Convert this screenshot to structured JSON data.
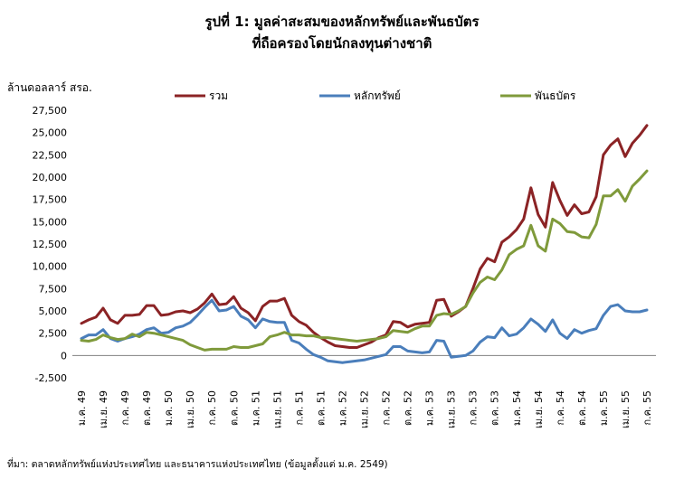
{
  "chart_data": {
    "type": "line",
    "title_line1": "รูปที่ 1: มูลค่าสะสมของหลักทรัพย์และพันธบัตร",
    "title_line2": "ที่ถือครองโดยนักลงทุนต่างชาติ",
    "ylabel": "ล้านดอลลาร์ สรอ.",
    "ylim": [
      -2500,
      27500
    ],
    "yticks": [
      "-2,500",
      "0",
      "2,500",
      "5,000",
      "7,500",
      "10,000",
      "12,500",
      "15,000",
      "17,500",
      "20,000",
      "22,500",
      "25,000",
      "27,500"
    ],
    "xtick_labels": [
      "ม.ค. 49",
      "เม.ย. 49",
      "ก.ค. 49",
      "ต.ค. 49",
      "ม.ค. 50",
      "เม.ย. 50",
      "ก.ค. 50",
      "ต.ค. 50",
      "ม.ค. 51",
      "เม.ย. 51",
      "ก.ค. 51",
      "ต.ค. 51",
      "ม.ค. 52",
      "เม.ย. 52",
      "ก.ค. 52",
      "ต.ค. 52",
      "ม.ค. 53",
      "เม.ย. 53",
      "ก.ค. 53",
      "ต.ค. 53",
      "ม.ค. 54",
      "เม.ย. 54",
      "ก.ค. 54",
      "ต.ค. 54",
      "ม.ค. 55",
      "เม.ย. 55",
      "ก.ค. 55"
    ],
    "legend_placement": "top",
    "grid": false,
    "series": [
      {
        "name": "รวม",
        "color": "#8B2325",
        "values": [
          3600,
          4000,
          4300,
          5300,
          4000,
          3600,
          4500,
          4500,
          4600,
          5600,
          5600,
          4500,
          4600,
          4900,
          5000,
          4800,
          5200,
          5900,
          6900,
          5700,
          5800,
          6600,
          5300,
          4800,
          3900,
          5500,
          6100,
          6100,
          6400,
          4500,
          3800,
          3400,
          2600,
          2000,
          1500,
          1100,
          1000,
          900,
          900,
          1200,
          1500,
          2000,
          2300,
          3800,
          3700,
          3200,
          3500,
          3600,
          3700,
          6200,
          6300,
          4400,
          4900,
          5500,
          7500,
          9700,
          10900,
          10500,
          12700,
          13300,
          14100,
          15300,
          18800,
          15800,
          14400,
          19400,
          17400,
          15700,
          16900,
          15900,
          16100,
          17800,
          22500,
          23600,
          24300,
          22300,
          23800,
          24700,
          25800
        ]
      },
      {
        "name": "หลักทรัพย์",
        "color": "#4A7EBB",
        "values": [
          1900,
          2300,
          2300,
          2900,
          1900,
          1600,
          1900,
          2100,
          2400,
          2900,
          3100,
          2500,
          2600,
          3100,
          3300,
          3700,
          4500,
          5400,
          6200,
          5000,
          5100,
          5500,
          4400,
          4000,
          3100,
          4100,
          3800,
          3700,
          3700,
          1700,
          1400,
          700,
          100,
          -200,
          -600,
          -700,
          -800,
          -700,
          -600,
          -500,
          -300,
          -100,
          100,
          1000,
          1000,
          500,
          400,
          300,
          400,
          1700,
          1600,
          -200,
          -100,
          0,
          500,
          1500,
          2100,
          2000,
          3100,
          2200,
          2400,
          3100,
          4100,
          3500,
          2700,
          4000,
          2500,
          1900,
          2900,
          2500,
          2800,
          3000,
          4500,
          5500,
          5700,
          5000,
          4900,
          4900,
          5100
        ]
      },
      {
        "name": "พันธบัตร",
        "color": "#7F9A3B",
        "values": [
          1700,
          1600,
          1800,
          2300,
          2000,
          1800,
          1900,
          2400,
          2100,
          2600,
          2500,
          2300,
          2100,
          1900,
          1700,
          1200,
          900,
          600,
          700,
          700,
          700,
          1000,
          900,
          900,
          1100,
          1300,
          2100,
          2300,
          2600,
          2300,
          2300,
          2200,
          2200,
          2000,
          2000,
          1900,
          1800,
          1700,
          1600,
          1700,
          1800,
          1900,
          2100,
          2800,
          2700,
          2600,
          3000,
          3300,
          3300,
          4500,
          4700,
          4600,
          5000,
          5500,
          7000,
          8200,
          8800,
          8500,
          9600,
          11300,
          11900,
          12300,
          14600,
          12300,
          11700,
          15300,
          14800,
          13900,
          13800,
          13300,
          13200,
          14700,
          17900,
          17900,
          18600,
          17300,
          19000,
          19800,
          20700
        ]
      }
    ]
  },
  "source_note": "ที่มา: ตลาดหลักทรัพย์แห่งประเทศไทย และธนาคารแห่งประเทศไทย (ข้อมูลตั้งแต่ ม.ค. 2549)"
}
